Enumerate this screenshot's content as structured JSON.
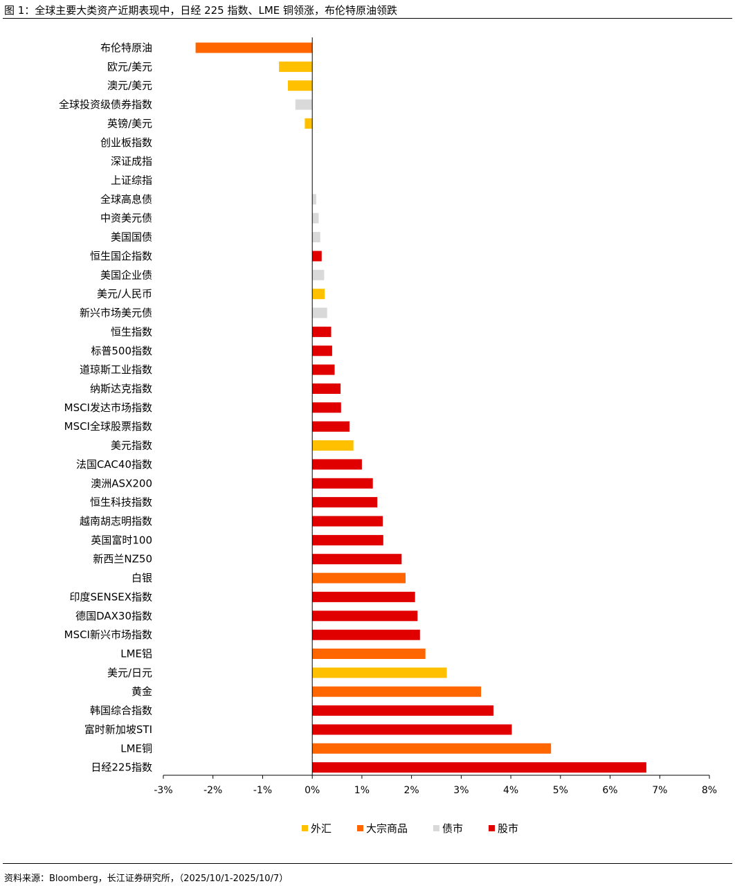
{
  "figure": {
    "title": "图 1：全球主要大类资产近期表现中，日经 225 指数、LME 铜领涨，布伦特原油领跌",
    "source": "资料来源：Bloomberg，长江证券研究所，（2025/10/1-2025/10/7）"
  },
  "colors": {
    "外汇": "#FFC000",
    "大宗商品": "#FF6600",
    "债市": "#D9D9D9",
    "股市": "#E00000"
  },
  "chart_data": {
    "type": "bar",
    "orientation": "horizontal",
    "title": "",
    "xlabel": "",
    "ylabel": "",
    "xlim": [
      -3,
      8
    ],
    "x_ticks": [
      -3,
      -2,
      -1,
      0,
      1,
      2,
      3,
      4,
      5,
      6,
      7,
      8
    ],
    "tick_labels": [
      "-3%",
      "-2%",
      "-1%",
      "0%",
      "1%",
      "2%",
      "3%",
      "4%",
      "5%",
      "6%",
      "7%",
      "8%"
    ],
    "unit": "%",
    "grid": false,
    "legend_position": "bottom",
    "legend": [
      "外汇",
      "大宗商品",
      "债市",
      "股市"
    ],
    "bars": [
      {
        "label": "布伦特原油",
        "value": -2.35,
        "category": "大宗商品"
      },
      {
        "label": "欧元/美元",
        "value": -0.67,
        "category": "外汇"
      },
      {
        "label": "澳元/美元",
        "value": -0.49,
        "category": "外汇"
      },
      {
        "label": "全球投资级债券指数",
        "value": -0.34,
        "category": "债市"
      },
      {
        "label": "英镑/美元",
        "value": -0.15,
        "category": "外汇"
      },
      {
        "label": "创业板指数",
        "value": 0.0,
        "category": "股市"
      },
      {
        "label": "深证成指",
        "value": 0.0,
        "category": "股市"
      },
      {
        "label": "上证综指",
        "value": 0.0,
        "category": "股市"
      },
      {
        "label": "全球高息债",
        "value": 0.08,
        "category": "债市"
      },
      {
        "label": "中资美元债",
        "value": 0.13,
        "category": "债市"
      },
      {
        "label": "美国国债",
        "value": 0.16,
        "category": "债市"
      },
      {
        "label": "恒生国企指数",
        "value": 0.19,
        "category": "股市"
      },
      {
        "label": "美国企业债",
        "value": 0.24,
        "category": "债市"
      },
      {
        "label": "美元/人民币",
        "value": 0.25,
        "category": "外汇"
      },
      {
        "label": "新兴市场美元债",
        "value": 0.3,
        "category": "债市"
      },
      {
        "label": "恒生指数",
        "value": 0.38,
        "category": "股市"
      },
      {
        "label": "标普500指数",
        "value": 0.4,
        "category": "股市"
      },
      {
        "label": "道琼斯工业指数",
        "value": 0.45,
        "category": "股市"
      },
      {
        "label": "纳斯达克指数",
        "value": 0.57,
        "category": "股市"
      },
      {
        "label": "MSCI发达市场指数",
        "value": 0.58,
        "category": "股市"
      },
      {
        "label": "MSCI全球股票指数",
        "value": 0.75,
        "category": "股市"
      },
      {
        "label": "美元指数",
        "value": 0.83,
        "category": "外汇"
      },
      {
        "label": "法国CAC40指数",
        "value": 1.0,
        "category": "股市"
      },
      {
        "label": "澳洲ASX200",
        "value": 1.22,
        "category": "股市"
      },
      {
        "label": "恒生科技指数",
        "value": 1.31,
        "category": "股市"
      },
      {
        "label": "越南胡志明指数",
        "value": 1.42,
        "category": "股市"
      },
      {
        "label": "英国富时100",
        "value": 1.43,
        "category": "股市"
      },
      {
        "label": "新西兰NZ50",
        "value": 1.8,
        "category": "股市"
      },
      {
        "label": "白银",
        "value": 1.88,
        "category": "大宗商品"
      },
      {
        "label": "印度SENSEX指数",
        "value": 2.07,
        "category": "股市"
      },
      {
        "label": "德国DAX30指数",
        "value": 2.12,
        "category": "股市"
      },
      {
        "label": "MSCI新兴市场指数",
        "value": 2.17,
        "category": "股市"
      },
      {
        "label": "LME铝",
        "value": 2.28,
        "category": "大宗商品"
      },
      {
        "label": "美元/日元",
        "value": 2.71,
        "category": "外汇"
      },
      {
        "label": "黄金",
        "value": 3.4,
        "category": "大宗商品"
      },
      {
        "label": "韩国综合指数",
        "value": 3.65,
        "category": "股市"
      },
      {
        "label": "富时新加坡STI",
        "value": 4.02,
        "category": "股市"
      },
      {
        "label": "LME铜",
        "value": 4.81,
        "category": "大宗商品"
      },
      {
        "label": "日经225指数",
        "value": 6.73,
        "category": "股市"
      }
    ]
  }
}
